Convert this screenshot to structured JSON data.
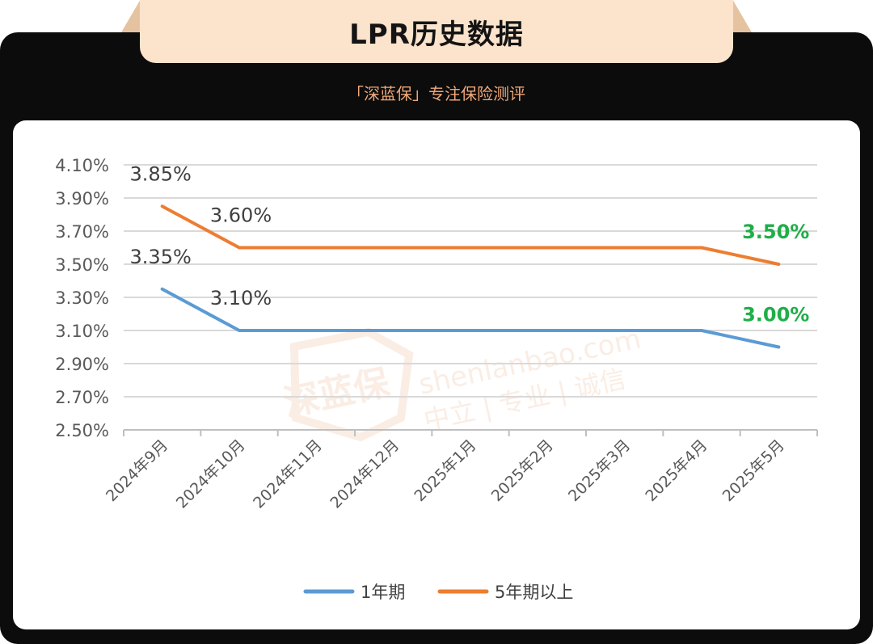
{
  "header": {
    "title": "LPR历史数据",
    "subtitle": "「深蓝保」专注保险测评"
  },
  "watermark": {
    "logo_text": "深蓝保",
    "domain": "shenlanbao.com",
    "slogan": "中立 | 专业 | 诚信"
  },
  "colors": {
    "series_1y": "#5b9bd5",
    "series_5y": "#ed7d31",
    "highlight_label": "#1fae48",
    "frame": "#0c0c0c",
    "title_tab": "#fbe3cc",
    "subtitle": "#f0a878"
  },
  "chart_data": {
    "type": "line",
    "title": "",
    "xlabel": "",
    "ylabel": "",
    "categories": [
      "2024年9月",
      "2024年10月",
      "2024年11月",
      "2024年12月",
      "2025年1月",
      "2025年2月",
      "2025年3月",
      "2025年4月",
      "2025年5月"
    ],
    "yticks": [
      "4.10%",
      "3.90%",
      "3.70%",
      "3.50%",
      "3.30%",
      "3.10%",
      "2.90%",
      "2.70%",
      "2.50%"
    ],
    "ylim": [
      2.5,
      4.1
    ],
    "grid": true,
    "legend_position": "bottom",
    "series": [
      {
        "name": "1年期",
        "values": [
          3.35,
          3.1,
          3.1,
          3.1,
          3.1,
          3.1,
          3.1,
          3.1,
          3.0
        ],
        "labels": [
          {
            "index": 0,
            "text": "3.35%",
            "highlight": false
          },
          {
            "index": 1,
            "text": "3.10%",
            "highlight": false
          },
          {
            "index": 8,
            "text": "3.00%",
            "highlight": true
          }
        ]
      },
      {
        "name": "5年期以上",
        "values": [
          3.85,
          3.6,
          3.6,
          3.6,
          3.6,
          3.6,
          3.6,
          3.6,
          3.5
        ],
        "labels": [
          {
            "index": 0,
            "text": "3.85%",
            "highlight": false
          },
          {
            "index": 1,
            "text": "3.60%",
            "highlight": false
          },
          {
            "index": 8,
            "text": "3.50%",
            "highlight": true
          }
        ]
      }
    ]
  }
}
